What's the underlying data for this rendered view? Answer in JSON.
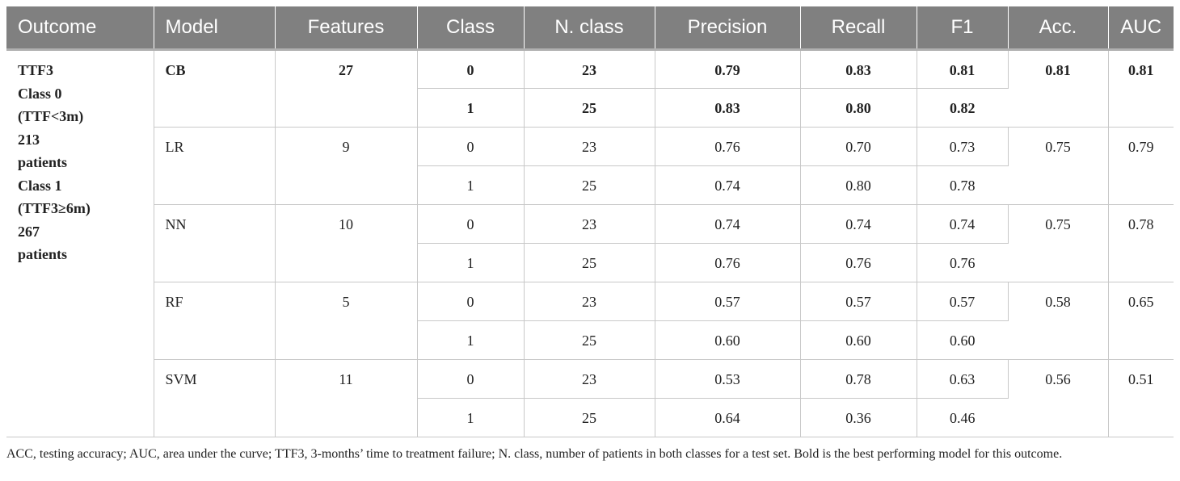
{
  "headers": [
    "Outcome",
    "Model",
    "Features",
    "Class",
    "N. class",
    "Precision",
    "Recall",
    "F1",
    "Acc.",
    "AUC"
  ],
  "outcome_lines": [
    "TTF3",
    "Class 0",
    "(TTF<3m)",
    "213",
    "patients",
    "Class 1",
    "(TTF3≥6m)",
    "267",
    "patients"
  ],
  "models": [
    {
      "name": "CB",
      "features": "27",
      "acc": "0.81",
      "auc": "0.81",
      "bold": true,
      "rows": [
        {
          "class": "0",
          "n": "23",
          "precision": "0.79",
          "recall": "0.83",
          "f1": "0.81"
        },
        {
          "class": "1",
          "n": "25",
          "precision": "0.83",
          "recall": "0.80",
          "f1": "0.82"
        }
      ]
    },
    {
      "name": "LR",
      "features": "9",
      "acc": "0.75",
      "auc": "0.79",
      "bold": false,
      "rows": [
        {
          "class": "0",
          "n": "23",
          "precision": "0.76",
          "recall": "0.70",
          "f1": "0.73"
        },
        {
          "class": "1",
          "n": "25",
          "precision": "0.74",
          "recall": "0.80",
          "f1": "0.78"
        }
      ]
    },
    {
      "name": "NN",
      "features": "10",
      "acc": "0.75",
      "auc": "0.78",
      "bold": false,
      "rows": [
        {
          "class": "0",
          "n": "23",
          "precision": "0.74",
          "recall": "0.74",
          "f1": "0.74"
        },
        {
          "class": "1",
          "n": "25",
          "precision": "0.76",
          "recall": "0.76",
          "f1": "0.76"
        }
      ]
    },
    {
      "name": "RF",
      "features": "5",
      "acc": "0.58",
      "auc": "0.65",
      "bold": false,
      "rows": [
        {
          "class": "0",
          "n": "23",
          "precision": "0.57",
          "recall": "0.57",
          "f1": "0.57"
        },
        {
          "class": "1",
          "n": "25",
          "precision": "0.60",
          "recall": "0.60",
          "f1": "0.60"
        }
      ]
    },
    {
      "name": "SVM",
      "features": "11",
      "acc": "0.56",
      "auc": "0.51",
      "bold": false,
      "rows": [
        {
          "class": "0",
          "n": "23",
          "precision": "0.53",
          "recall": "0.78",
          "f1": "0.63"
        },
        {
          "class": "1",
          "n": "25",
          "precision": "0.64",
          "recall": "0.36",
          "f1": "0.46"
        }
      ]
    }
  ],
  "footnote": "ACC, testing accuracy; AUC, area under the curve; TTF3, 3-months’ time to treatment failure; N. class, number of patients in both classes for a test set. Bold is the best performing model for this outcome.",
  "colors": {
    "header_bg": "#808080",
    "header_text": "#ffffff",
    "grid": "#c8c8c8"
  }
}
